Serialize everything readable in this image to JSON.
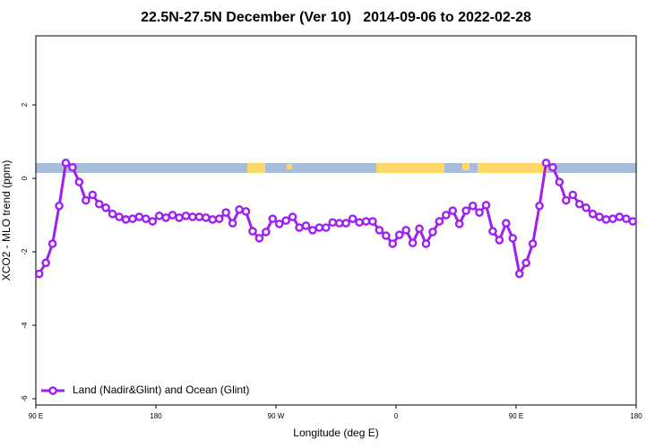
{
  "chart_data": {
    "type": "line",
    "title": "22.5N-27.5N December (Ver 10)   2014-09-06 to 2022-02-28",
    "x_label": "Longitude (deg E)",
    "y_label": "XCO2 - MLO trend (ppm)",
    "x": [
      92.5,
      97.5,
      102.5,
      107.5,
      112.5,
      117.5,
      122.5,
      127.5,
      132.5,
      137.5,
      142.5,
      147.5,
      152.5,
      157.5,
      162.5,
      167.5,
      172.5,
      177.5,
      182.5,
      187.5,
      192.5,
      197.5,
      202.5,
      207.5,
      212.5,
      217.5,
      222.5,
      227.5,
      232.5,
      237.5,
      242.5,
      247.5,
      252.5,
      257.5,
      262.5,
      267.5,
      272.5,
      277.5,
      282.5,
      287.5,
      292.5,
      297.5,
      302.5,
      307.5,
      312.5,
      317.5,
      322.5,
      327.5,
      332.5,
      337.5,
      342.5,
      347.5,
      352.5,
      357.5,
      362.5,
      367.5,
      372.5,
      377.5,
      382.5,
      387.5,
      392.5,
      397.5,
      402.5,
      407.5,
      412.5,
      417.5,
      422.5,
      427.5,
      432.5,
      437.5,
      442.5,
      447.5,
      452.5,
      457.5,
      462.5,
      467.5,
      472.5,
      477.5,
      482.5,
      487.5,
      492.5,
      497.5,
      502.5,
      507.5,
      512.5,
      517.5,
      522.5,
      527.5,
      532.5,
      537.5
    ],
    "series": [
      {
        "name": "Land (Nadir&Glint) and Ocean (Glint)",
        "color": "#a020f0",
        "values": [
          -2.6,
          -2.3,
          -1.78,
          -0.75,
          0.42,
          0.3,
          -0.1,
          -0.6,
          -0.45,
          -0.7,
          -0.8,
          -0.97,
          -1.05,
          -1.12,
          -1.1,
          -1.05,
          -1.1,
          -1.17,
          -1.02,
          -1.07,
          -1.0,
          -1.07,
          -1.02,
          -1.05,
          -1.05,
          -1.07,
          -1.12,
          -1.1,
          -0.93,
          -1.22,
          -0.85,
          -0.9,
          -1.44,
          -1.63,
          -1.46,
          -1.1,
          -1.24,
          -1.15,
          -1.05,
          -1.34,
          -1.29,
          -1.41,
          -1.34,
          -1.34,
          -1.2,
          -1.22,
          -1.22,
          -1.1,
          -1.2,
          -1.17,
          -1.17,
          -1.41,
          -1.56,
          -1.78,
          -1.54,
          -1.41,
          -1.76,
          -1.37,
          -1.78,
          -1.46,
          -1.17,
          -1.0,
          -0.88,
          -1.24,
          -0.88,
          -0.75,
          -0.93,
          -0.73,
          -1.44,
          -1.68,
          -1.22,
          -1.63,
          -2.6,
          -2.3,
          -1.78,
          -0.75,
          0.42,
          0.3,
          -0.1,
          -0.6,
          -0.45,
          -0.7,
          -0.8,
          -0.97,
          -1.05,
          -1.12,
          -1.1,
          -1.05,
          -1.1,
          -1.17
        ]
      }
    ],
    "xlim": [
      90,
      540
    ],
    "xticks": [
      {
        "value": 90,
        "label": "90 E"
      },
      {
        "value": 180,
        "label": "180"
      },
      {
        "value": 270,
        "label": "90 W"
      },
      {
        "value": 360,
        "label": "0"
      },
      {
        "value": 450,
        "label": "90 E"
      },
      {
        "value": 540,
        "label": "180"
      }
    ],
    "ylim": [
      -6.17,
      3.88
    ],
    "yticks": [
      -6,
      -4,
      -2,
      0,
      2
    ],
    "legend": "lower left",
    "grid": false
  }
}
